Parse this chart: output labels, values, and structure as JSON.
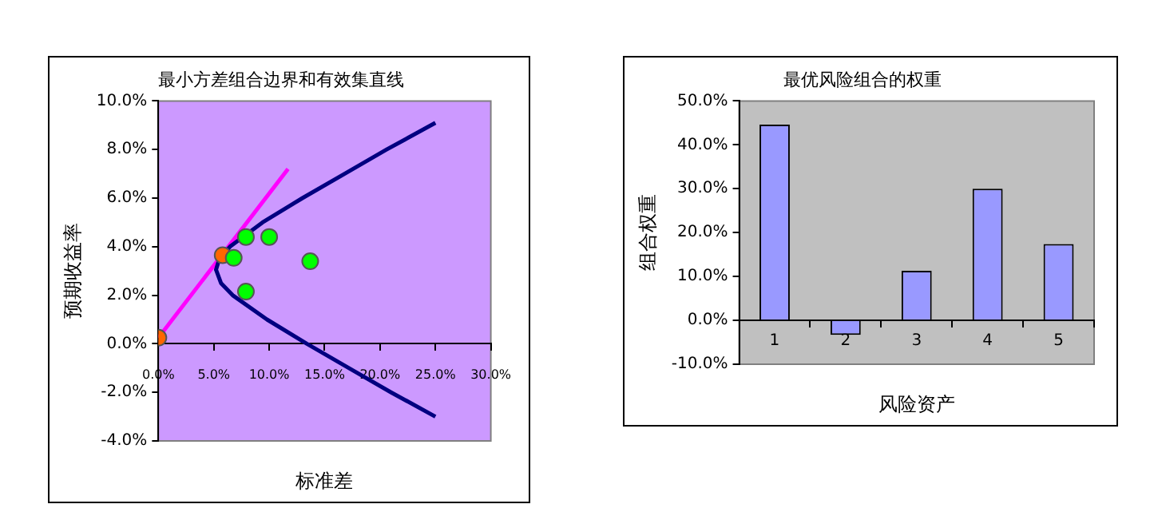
{
  "chart_data": [
    {
      "type": "line",
      "title": "最小方差组合边界和有效集直线",
      "xlabel": "标准差",
      "ylabel": "预期收益率",
      "xlim": [
        0,
        0.3
      ],
      "xticks": [
        {
          "value": 0,
          "label": "0.0%"
        },
        {
          "value": 0.05,
          "label": "5.0%"
        },
        {
          "value": 0.1,
          "label": "10.0%"
        },
        {
          "value": 0.15,
          "label": "15.0%"
        },
        {
          "value": 0.2,
          "label": "20.0%"
        },
        {
          "value": 0.25,
          "label": "25.0%"
        },
        {
          "value": 0.3,
          "label": "30.0%"
        }
      ],
      "ylim": [
        -0.04,
        0.1
      ],
      "yticks": [
        {
          "value": -0.04,
          "label": "-4.0%"
        },
        {
          "value": -0.02,
          "label": "-2.0%"
        },
        {
          "value": 0,
          "label": "0.0%"
        },
        {
          "value": 0.02,
          "label": "2.0%"
        },
        {
          "value": 0.04,
          "label": "4.0%"
        },
        {
          "value": 0.06,
          "label": "6.0%"
        },
        {
          "value": 0.08,
          "label": "8.0%"
        },
        {
          "value": 0.1,
          "label": "10.0%"
        }
      ],
      "grid": false,
      "legend": false,
      "series": [
        {
          "type": "line",
          "color": "#000080",
          "marker": "none",
          "line_style": "solid",
          "x": [
            0.25,
            0.21,
            0.172,
            0.134,
            0.098,
            0.067,
            0.0565,
            0.052,
            0.055,
            0.0646,
            0.094,
            0.13,
            0.168,
            0.206,
            0.25
          ],
          "values": [
            -0.03,
            -0.02,
            -0.01,
            0,
            0.01,
            0.02,
            0.025,
            0.0305,
            0.035,
            0.04,
            0.05,
            0.06,
            0.07,
            0.08,
            0.091
          ]
        },
        {
          "type": "line",
          "color": "#ff00ff",
          "marker": "none",
          "line_style": "solid",
          "x": [
            0,
            0.117
          ],
          "values": [
            0.0025,
            0.072
          ]
        },
        {
          "type": "scatter",
          "color": "#00ff00",
          "marker": "circle",
          "x": [
            0.068,
            0.079,
            0.1,
            0.137,
            0.079
          ],
          "values": [
            0.0354,
            0.044,
            0.044,
            0.034,
            0.0215
          ]
        },
        {
          "type": "scatter",
          "color": "#ff6600",
          "marker": "circle",
          "x": [
            0,
            0.058
          ],
          "values": [
            0.0025,
            0.0365
          ]
        }
      ]
    },
    {
      "type": "bar",
      "title": "最优风险组合的权重",
      "xlabel": "风险资产",
      "ylabel": "组合权重",
      "categories": [
        "1",
        "2",
        "3",
        "4",
        "5"
      ],
      "values": [
        0.446,
        -0.033,
        0.113,
        0.3,
        0.174
      ],
      "color": "#9999ff",
      "ylim": [
        -0.1,
        0.5
      ],
      "yticks": [
        {
          "value": -0.1,
          "label": "-10.0%"
        },
        {
          "value": 0,
          "label": "0.0%"
        },
        {
          "value": 0.1,
          "label": "10.0%"
        },
        {
          "value": 0.2,
          "label": "20.0%"
        },
        {
          "value": 0.3,
          "label": "30.0%"
        },
        {
          "value": 0.4,
          "label": "40.0%"
        },
        {
          "value": 0.5,
          "label": "50.0%"
        }
      ],
      "grid": false,
      "legend": false
    }
  ]
}
